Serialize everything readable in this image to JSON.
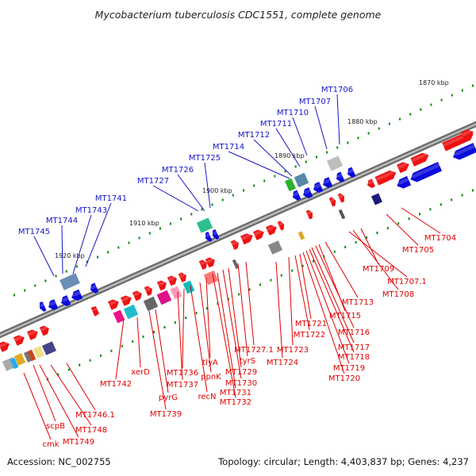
{
  "title": "Mycobacterium tuberculosis CDC1551, complete genome",
  "colors": {
    "forward_strand_gene": "#ee1111",
    "reverse_strand_gene": "#0a0adb",
    "forward_label": "#e00000",
    "reverse_label": "#1515c8",
    "backbone": "#808080",
    "tick_minor": "#118811"
  },
  "scale_labels": [
    "1870 kbp",
    "1880 kbp",
    "1890 kbp",
    "1900 kbp",
    "1910 kbp",
    "1920 kbp"
  ],
  "top_gene_labels": [
    "MT1706",
    "MT1707",
    "MT1710",
    "MT1711",
    "MT1712",
    "MT1714",
    "MT1725",
    "MT1726",
    "MT1727",
    "MT1741",
    "MT1743",
    "MT1744",
    "MT1745"
  ],
  "bottom_gene_labels": [
    "MT1704",
    "MT1705",
    "MT1709",
    "MT1707.1",
    "MT1708",
    "MT1713",
    "MT1715",
    "MT1716",
    "MT1717",
    "MT1718",
    "MT1719",
    "MT1720",
    "MT1721",
    "MT1722",
    "MT1723",
    "MT1724",
    "MT1727.1",
    "tyrS",
    "MT1729",
    "MT1730",
    "MT1731",
    "MT1732",
    "tlyA",
    "ppnK",
    "recN",
    "MT1736",
    "MT1737",
    "pyrG",
    "MT1739",
    "xerD",
    "MT1742",
    "MT1746.1",
    "MT1748",
    "MT1749",
    "scpB",
    "cmk"
  ],
  "footer": {
    "accession": "Accession: NC_002755",
    "summary": "Topology: circular; Length: 4,403,837 bp; Genes: 4,237"
  }
}
